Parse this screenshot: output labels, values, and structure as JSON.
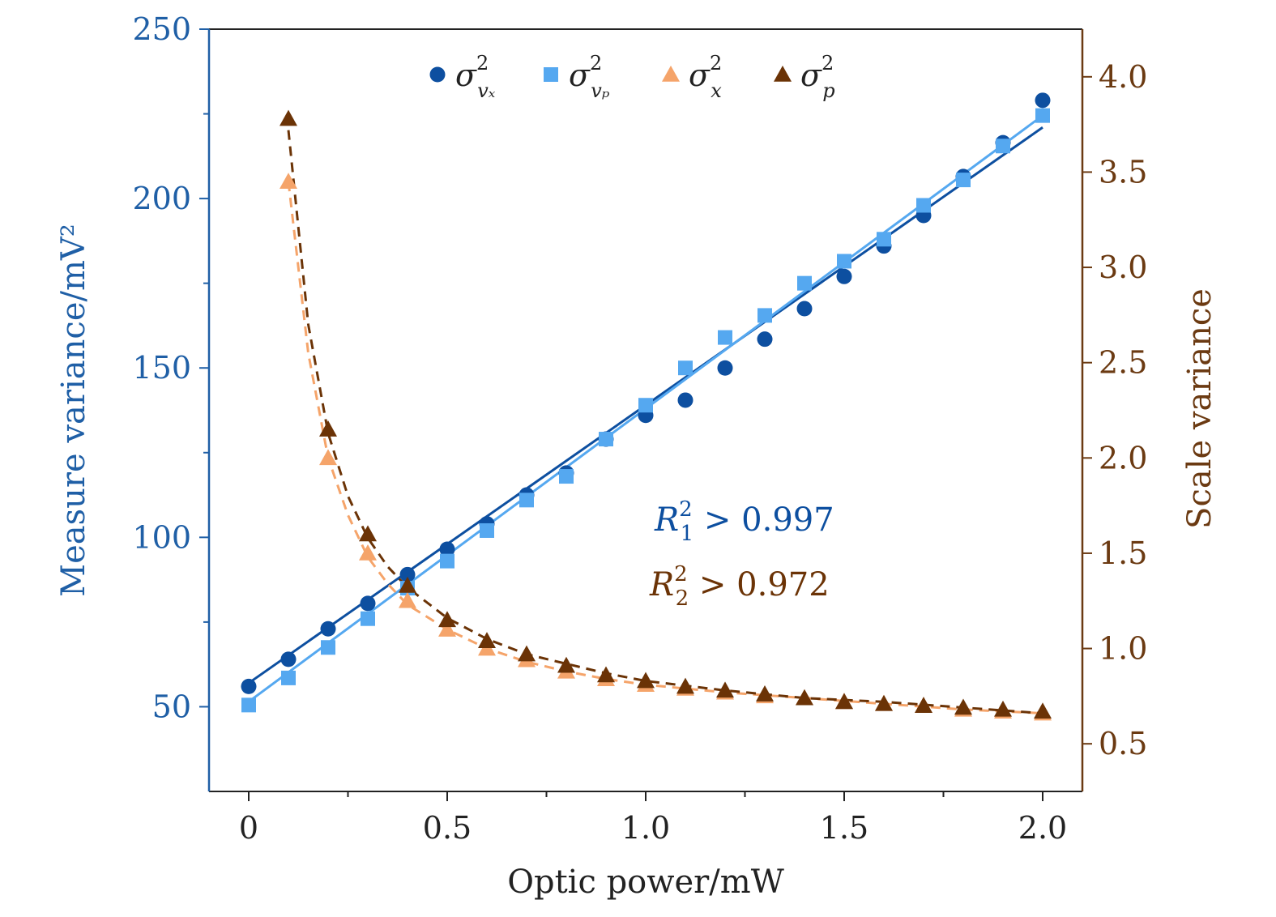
{
  "chart_data": {
    "type": "scatter",
    "xlabel": "Optic power/mW",
    "ylabel_left": "Measure variance/mV²",
    "ylabel_right": "Scale variance",
    "xlim": [
      -0.1,
      2.1
    ],
    "ylim_left": [
      25,
      250
    ],
    "ylim_right": [
      0.25,
      4.25
    ],
    "x_ticks": [
      0,
      0.5,
      1.0,
      1.5,
      2.0
    ],
    "x_tick_labels": [
      "0",
      "0.5",
      "1.0",
      "1.5",
      "2.0"
    ],
    "y_left_ticks": [
      50,
      100,
      150,
      200,
      250
    ],
    "y_left_tick_labels": [
      "50",
      "100",
      "150",
      "200",
      "250"
    ],
    "y_right_ticks": [
      0.5,
      1.0,
      1.5,
      2.0,
      2.5,
      3.0,
      3.5,
      4.0
    ],
    "y_right_tick_labels": [
      "0.5",
      "1.0",
      "1.5",
      "2.0",
      "2.5",
      "3.0",
      "3.5",
      "4.0"
    ],
    "legend_position": "top",
    "colors": {
      "left_axis": "#1f5fa6",
      "right_axis": "#6b3a12",
      "s_vx": "#0d4fa0",
      "s_vp": "#55a8f0",
      "s_x": "#f5a46a",
      "s_p": "#6b3306"
    },
    "series": [
      {
        "name_base": "σ",
        "name_sup": "2",
        "name_sub": "vₓ",
        "axis": "left",
        "marker": "circle",
        "color_key": "s_vx",
        "x": [
          0,
          0.1,
          0.2,
          0.3,
          0.4,
          0.5,
          0.6,
          0.7,
          0.8,
          0.9,
          1.0,
          1.1,
          1.2,
          1.3,
          1.4,
          1.5,
          1.6,
          1.7,
          1.8,
          1.9,
          2.0
        ],
        "values": [
          56,
          64,
          73,
          80.5,
          89,
          96.5,
          104,
          112.5,
          119,
          129,
          136,
          140.5,
          150,
          158.5,
          167.5,
          177,
          186,
          195,
          206.5,
          216.5,
          229
        ],
        "fit": {
          "kind": "linear",
          "x0": 0,
          "y0": 57,
          "x1": 2.0,
          "y1": 221
        }
      },
      {
        "name_base": "σ",
        "name_sup": "2",
        "name_sub": "vₚ",
        "axis": "left",
        "marker": "square",
        "color_key": "s_vp",
        "x": [
          0,
          0.1,
          0.2,
          0.3,
          0.4,
          0.5,
          0.6,
          0.7,
          0.8,
          0.9,
          1.0,
          1.1,
          1.2,
          1.3,
          1.4,
          1.5,
          1.6,
          1.7,
          1.8,
          1.9,
          2.0
        ],
        "values": [
          50.5,
          58.5,
          67.5,
          76,
          85,
          93,
          102,
          111,
          118,
          129,
          139,
          150,
          159,
          165.5,
          175,
          181.5,
          188,
          198,
          205.5,
          215.5,
          224.5
        ],
        "fit": {
          "kind": "linear",
          "x0": 0,
          "y0": 51.5,
          "x1": 2.0,
          "y1": 224.5
        }
      },
      {
        "name_base": "σ",
        "name_sup": "2",
        "name_sub": "x",
        "axis": "right",
        "marker": "triangle",
        "color_key": "s_x",
        "x": [
          0.1,
          0.2,
          0.3,
          0.4,
          0.5,
          0.6,
          0.7,
          0.8,
          0.9,
          1.0,
          1.1,
          1.2,
          1.3,
          1.4,
          1.5,
          1.6,
          1.7,
          1.8,
          1.9,
          2.0
        ],
        "values": [
          3.45,
          2.0,
          1.5,
          1.25,
          1.1,
          1.0,
          0.94,
          0.88,
          0.84,
          0.81,
          0.79,
          0.77,
          0.75,
          0.74,
          0.72,
          0.71,
          0.7,
          0.68,
          0.67,
          0.66
        ],
        "fit": {
          "kind": "dashed",
          "x": [
            0.1,
            0.15,
            0.2,
            0.25,
            0.3,
            0.35,
            0.4,
            0.5,
            0.6,
            0.7,
            0.8,
            0.9,
            1.0,
            1.2,
            1.4,
            1.6,
            1.8,
            2.0
          ],
          "values": [
            3.45,
            2.55,
            2.0,
            1.7,
            1.48,
            1.34,
            1.23,
            1.1,
            1.0,
            0.93,
            0.88,
            0.84,
            0.81,
            0.77,
            0.74,
            0.71,
            0.68,
            0.66
          ]
        }
      },
      {
        "name_base": "σ",
        "name_sup": "2",
        "name_sub": "p",
        "axis": "right",
        "marker": "triangle",
        "color_key": "s_p",
        "x": [
          0.1,
          0.2,
          0.3,
          0.4,
          0.5,
          0.6,
          0.7,
          0.8,
          0.9,
          1.0,
          1.1,
          1.2,
          1.3,
          1.4,
          1.5,
          1.6,
          1.7,
          1.8,
          1.9,
          2.0
        ],
        "values": [
          3.78,
          2.15,
          1.6,
          1.33,
          1.15,
          1.04,
          0.97,
          0.91,
          0.86,
          0.83,
          0.8,
          0.78,
          0.76,
          0.74,
          0.72,
          0.71,
          0.7,
          0.69,
          0.68,
          0.67
        ],
        "fit": {
          "kind": "dashed",
          "x": [
            0.1,
            0.15,
            0.2,
            0.25,
            0.3,
            0.35,
            0.4,
            0.5,
            0.6,
            0.7,
            0.8,
            0.9,
            1.0,
            1.2,
            1.4,
            1.6,
            1.8,
            2.0
          ],
          "values": [
            3.72,
            2.7,
            2.13,
            1.8,
            1.58,
            1.43,
            1.32,
            1.16,
            1.05,
            0.97,
            0.92,
            0.87,
            0.83,
            0.78,
            0.74,
            0.72,
            0.69,
            0.66
          ]
        }
      }
    ],
    "annotations": [
      {
        "base": "R",
        "sub": "1",
        "sup": "2",
        "text": " > 0.997",
        "color_key": "s_vx"
      },
      {
        "base": "R",
        "sub": "2",
        "sup": "2",
        "text": " > 0.972",
        "color_key": "s_p"
      }
    ]
  }
}
